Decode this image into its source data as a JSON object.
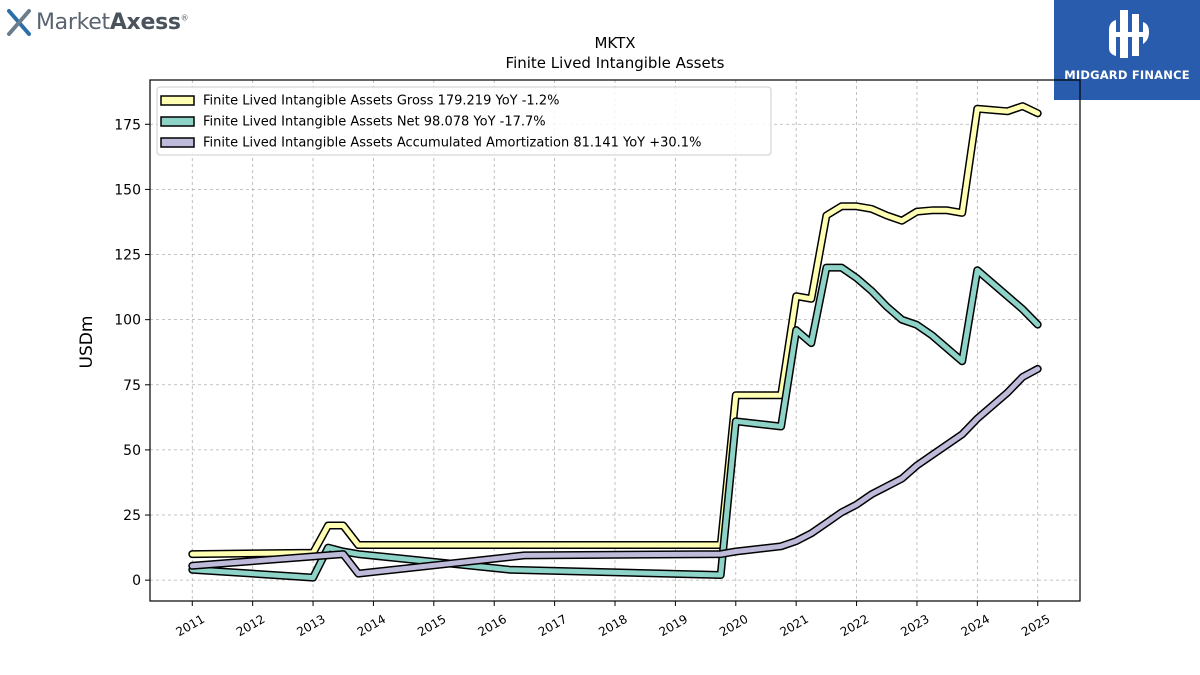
{
  "brand": {
    "left_logo": "MarketAxess",
    "left_logo_light": "Market",
    "left_logo_bold": "Axess",
    "left_logo_mark": "®",
    "right_logo": "MIDGARD FINANCE"
  },
  "colors": {
    "gross": "#ffffb3",
    "net": "#8dd3c7",
    "amortization": "#bebada",
    "outline": "#000000",
    "midgard_bg": "#2a5cad"
  },
  "chart_data": {
    "type": "line",
    "title": "MKTX",
    "subtitle": "Finite Lived Intangible Assets",
    "ylabel": "USDm",
    "xlabel": "",
    "ylim": [
      -8,
      192
    ],
    "xlim": [
      2010.3,
      2025.7
    ],
    "yticks": [
      0,
      25,
      50,
      75,
      100,
      125,
      150,
      175
    ],
    "xticks": [
      "2011",
      "2012",
      "2013",
      "2014",
      "2015",
      "2016",
      "2017",
      "2018",
      "2019",
      "2020",
      "2021",
      "2022",
      "2023",
      "2024",
      "2025"
    ],
    "grid": true,
    "legend_position": "top-left",
    "series": [
      {
        "name": "Finite Lived Intangible Assets Gross  179.219 YoY -1.2%",
        "color": "#ffffb3",
        "points": [
          [
            2011.0,
            10.0
          ],
          [
            2013.0,
            10.5
          ],
          [
            2013.25,
            21.0
          ],
          [
            2013.5,
            21.0
          ],
          [
            2013.75,
            13.5
          ],
          [
            2019.75,
            13.5
          ],
          [
            2020.0,
            71.0
          ],
          [
            2020.75,
            71.0
          ],
          [
            2021.0,
            109.0
          ],
          [
            2021.25,
            108.0
          ],
          [
            2021.5,
            140.0
          ],
          [
            2021.75,
            143.5
          ],
          [
            2022.0,
            143.5
          ],
          [
            2022.25,
            142.5
          ],
          [
            2022.5,
            140.0
          ],
          [
            2022.75,
            138.0
          ],
          [
            2023.0,
            141.5
          ],
          [
            2023.25,
            142.0
          ],
          [
            2023.5,
            142.0
          ],
          [
            2023.75,
            141.0
          ],
          [
            2024.0,
            181.0
          ],
          [
            2024.25,
            180.5
          ],
          [
            2024.5,
            180.0
          ],
          [
            2024.75,
            182.0
          ],
          [
            2025.0,
            179.2
          ]
        ]
      },
      {
        "name": "Finite Lived Intangible Assets Net  98.078 YoY -17.7%",
        "color": "#8dd3c7",
        "points": [
          [
            2011.0,
            4.0
          ],
          [
            2013.0,
            1.0
          ],
          [
            2013.25,
            12.5
          ],
          [
            2013.5,
            11.0
          ],
          [
            2013.75,
            10.0
          ],
          [
            2016.25,
            4.0
          ],
          [
            2019.75,
            2.0
          ],
          [
            2020.0,
            61.0
          ],
          [
            2020.75,
            59.0
          ],
          [
            2021.0,
            96.0
          ],
          [
            2021.25,
            91.0
          ],
          [
            2021.5,
            120.0
          ],
          [
            2021.75,
            120.0
          ],
          [
            2022.0,
            116.0
          ],
          [
            2022.25,
            111.0
          ],
          [
            2022.5,
            105.0
          ],
          [
            2022.75,
            100.0
          ],
          [
            2023.0,
            98.0
          ],
          [
            2023.25,
            94.0
          ],
          [
            2023.5,
            89.0
          ],
          [
            2023.75,
            84.0
          ],
          [
            2024.0,
            119.0
          ],
          [
            2024.25,
            114.0
          ],
          [
            2024.5,
            109.0
          ],
          [
            2024.75,
            104.0
          ],
          [
            2025.0,
            98.1
          ]
        ]
      },
      {
        "name": "Finite Lived Intangible Assets Accumulated Amortization  81.141 YoY +30.1%",
        "color": "#bebada",
        "points": [
          [
            2011.0,
            5.5
          ],
          [
            2013.5,
            10.0
          ],
          [
            2013.75,
            2.5
          ],
          [
            2016.5,
            9.5
          ],
          [
            2019.75,
            10.0
          ],
          [
            2020.0,
            11.0
          ],
          [
            2020.75,
            13.0
          ],
          [
            2021.0,
            15.0
          ],
          [
            2021.25,
            18.0
          ],
          [
            2021.5,
            22.0
          ],
          [
            2021.75,
            26.0
          ],
          [
            2022.0,
            29.0
          ],
          [
            2022.25,
            33.0
          ],
          [
            2022.5,
            36.0
          ],
          [
            2022.75,
            39.0
          ],
          [
            2023.0,
            44.0
          ],
          [
            2023.25,
            48.0
          ],
          [
            2023.5,
            52.0
          ],
          [
            2023.75,
            56.0
          ],
          [
            2024.0,
            62.0
          ],
          [
            2024.25,
            67.0
          ],
          [
            2024.5,
            72.0
          ],
          [
            2024.75,
            78.0
          ],
          [
            2025.0,
            81.1
          ]
        ]
      }
    ]
  }
}
